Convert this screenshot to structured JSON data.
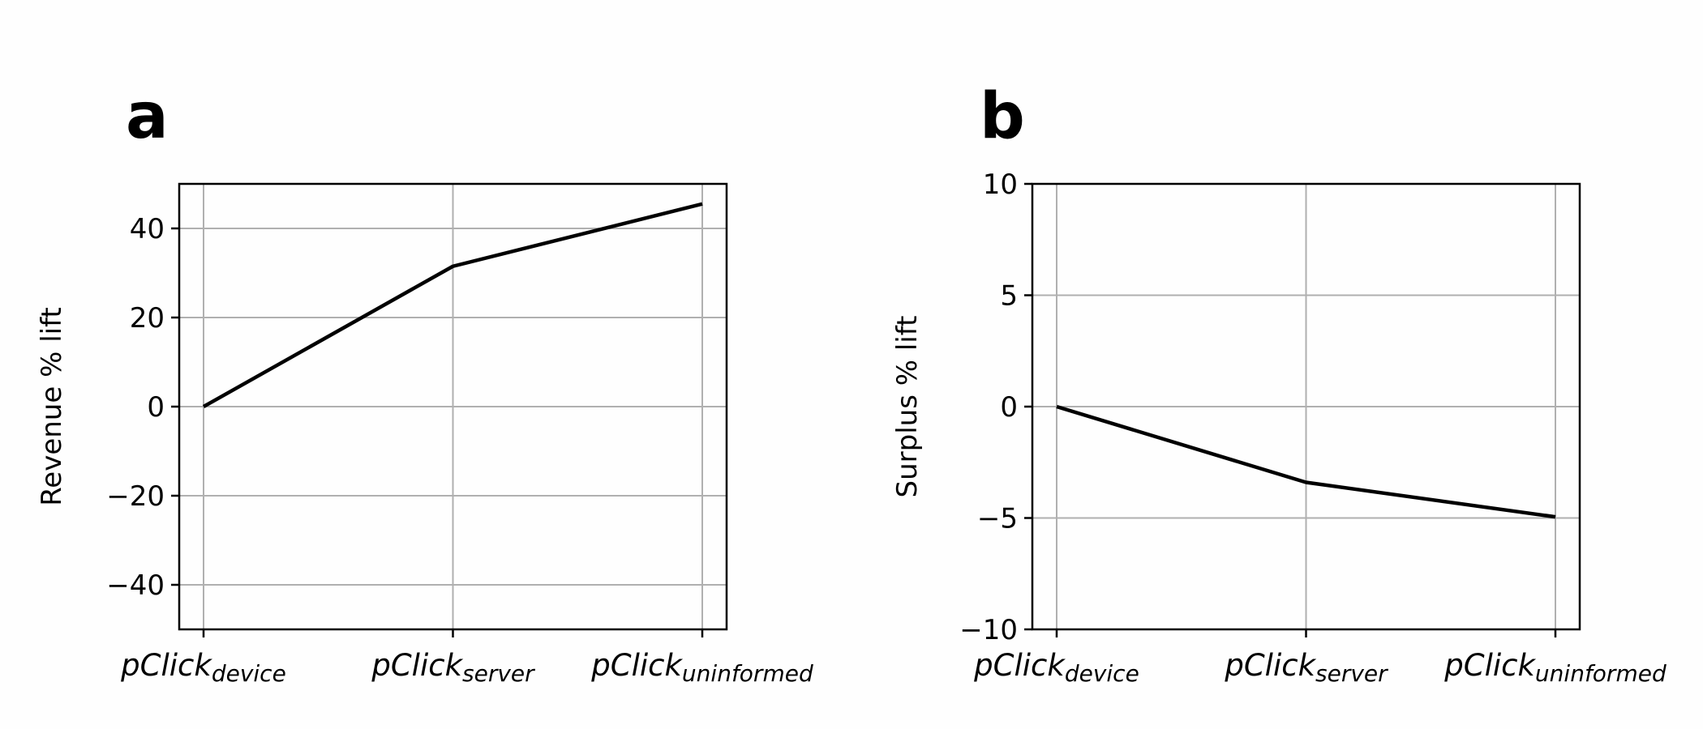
{
  "chart_data": [
    {
      "type": "line",
      "panel_label": "a",
      "ylabel": "Revenue % lift",
      "xlabel": "",
      "categories": [
        {
          "base": "pClick",
          "sub": "device"
        },
        {
          "base": "pClick",
          "sub": "server"
        },
        {
          "base": "pClick",
          "sub": "uninformed"
        }
      ],
      "values": [
        0,
        31.5,
        45.5
      ],
      "ylim": [
        -50,
        50
      ],
      "yticks": [
        -40,
        -20,
        0,
        20,
        40
      ],
      "ytick_labels": [
        "−40",
        "−20",
        "0",
        "20",
        "40"
      ],
      "grid": true,
      "line_color": "#000000"
    },
    {
      "type": "line",
      "panel_label": "b",
      "ylabel": "Surplus % lift",
      "xlabel": "",
      "categories": [
        {
          "base": "pClick",
          "sub": "device"
        },
        {
          "base": "pClick",
          "sub": "server"
        },
        {
          "base": "pClick",
          "sub": "uninformed"
        }
      ],
      "values": [
        0,
        -3.4,
        -4.95
      ],
      "ylim": [
        -10,
        10
      ],
      "yticks": [
        -10,
        -5,
        0,
        5,
        10
      ],
      "ytick_labels": [
        "−10",
        "−5",
        "0",
        "5",
        "10"
      ],
      "grid": true,
      "line_color": "#000000"
    }
  ]
}
